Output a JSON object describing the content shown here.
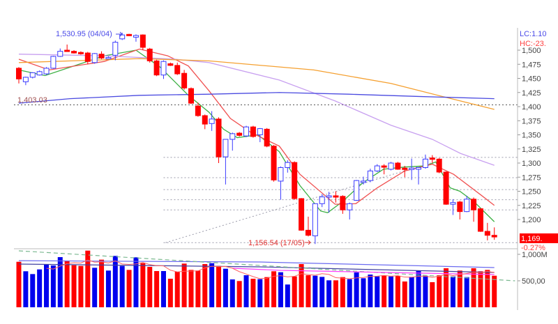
{
  "chart_data": {
    "type": "candlestick",
    "price_axis": {
      "ticks": [
        1500,
        1475,
        1450,
        1425,
        1400,
        1375,
        1350,
        1325,
        1300,
        1275,
        1250,
        1225,
        1200
      ],
      "ylim": [
        1150,
        1535
      ]
    },
    "volume_axis": {
      "tick_labels": [
        "1,000M",
        "500,00"
      ],
      "tick_values": [
        1000,
        500
      ],
      "ylim": [
        0,
        1130
      ],
      "unit": "M"
    },
    "header_labels": {
      "lc": "LC:1.10",
      "hc": "HC:-23."
    },
    "last_price": {
      "label": "1,169.",
      "change": "-0.27%",
      "value": 1169
    },
    "annotations": {
      "high": {
        "label": "1,530.95 (04/04)",
        "value": 1530.95,
        "index": 15
      },
      "low": {
        "label": "1,156.54 (17/05)",
        "value": 1156.54,
        "index": 43
      },
      "reference": {
        "label": "1,403.03",
        "value": 1403.03
      }
    },
    "levels": [
      1310,
      1274,
      1253,
      1235,
      1217,
      1159
    ],
    "trendline": [
      [
        21.3,
        1159
      ],
      [
        60,
        1301
      ]
    ],
    "candles": [
      [
        1468,
        1470,
        1441,
        1449
      ],
      [
        1444,
        1453,
        1438,
        1452
      ],
      [
        1452,
        1461,
        1450,
        1460
      ],
      [
        1456,
        1464,
        1455,
        1462
      ],
      [
        1458,
        1470,
        1456,
        1468
      ],
      [
        1468,
        1490,
        1467,
        1489
      ],
      [
        1489,
        1503,
        1488,
        1498
      ],
      [
        1500,
        1510,
        1497,
        1498
      ],
      [
        1498,
        1500,
        1494,
        1495
      ],
      [
        1496,
        1498,
        1492,
        1494
      ],
      [
        1495,
        1497,
        1475,
        1480
      ],
      [
        1478,
        1495,
        1476,
        1494
      ],
      [
        1493,
        1498,
        1484,
        1486
      ],
      [
        1485,
        1489,
        1484,
        1487
      ],
      [
        1491,
        1517,
        1482,
        1514
      ],
      [
        1520,
        1530.95,
        1518,
        1527
      ],
      [
        1528,
        1529,
        1525,
        1526
      ],
      [
        1523,
        1528,
        1515,
        1526
      ],
      [
        1527,
        1528,
        1500,
        1505
      ],
      [
        1502,
        1504,
        1478,
        1481
      ],
      [
        1481,
        1483,
        1454,
        1456
      ],
      [
        1456,
        1482,
        1449,
        1480
      ],
      [
        1476,
        1478,
        1472,
        1473
      ],
      [
        1473,
        1478,
        1456,
        1458
      ],
      [
        1459,
        1465,
        1430,
        1433
      ],
      [
        1432,
        1434,
        1405,
        1406
      ],
      [
        1401,
        1407,
        1382,
        1384
      ],
      [
        1384,
        1386,
        1360,
        1369
      ],
      [
        1370,
        1392,
        1357,
        1378
      ],
      [
        1378,
        1381,
        1300,
        1311
      ],
      [
        1311,
        1342,
        1262,
        1342
      ],
      [
        1342,
        1354,
        1322,
        1352
      ],
      [
        1353,
        1355,
        1347,
        1349
      ],
      [
        1348,
        1366,
        1346,
        1364
      ],
      [
        1364,
        1366,
        1345,
        1347
      ],
      [
        1350,
        1362,
        1337,
        1361
      ],
      [
        1360,
        1362,
        1328,
        1330
      ],
      [
        1330,
        1332,
        1267,
        1270
      ],
      [
        1268,
        1294,
        1235,
        1292
      ],
      [
        1292,
        1305,
        1283,
        1301
      ],
      [
        1301,
        1303,
        1235,
        1237
      ],
      [
        1237,
        1238,
        1180,
        1181
      ],
      [
        1181,
        1205,
        1170,
        1172
      ],
      [
        1171,
        1228,
        1156.54,
        1228
      ],
      [
        1228,
        1245,
        1222,
        1240
      ],
      [
        1241,
        1249,
        1212,
        1242
      ],
      [
        1242,
        1250,
        1230,
        1240
      ],
      [
        1241,
        1243,
        1210,
        1217
      ],
      [
        1217,
        1230,
        1200,
        1228
      ],
      [
        1234,
        1270,
        1233,
        1269
      ],
      [
        1266,
        1276,
        1262,
        1268
      ],
      [
        1269,
        1290,
        1266,
        1286
      ],
      [
        1286,
        1298,
        1284,
        1295
      ],
      [
        1295,
        1298,
        1280,
        1294
      ],
      [
        1289,
        1302,
        1287,
        1300
      ],
      [
        1300,
        1302,
        1288,
        1289
      ],
      [
        1291,
        1295,
        1275,
        1289
      ],
      [
        1289,
        1308,
        1270,
        1291
      ],
      [
        1289,
        1293,
        1262,
        1292
      ],
      [
        1292,
        1315,
        1290,
        1307
      ],
      [
        1309,
        1314,
        1300,
        1307
      ],
      [
        1307,
        1309,
        1282,
        1284
      ],
      [
        1284,
        1285,
        1226,
        1227
      ],
      [
        1227,
        1236,
        1208,
        1230
      ],
      [
        1231,
        1233,
        1200,
        1214
      ],
      [
        1214,
        1242,
        1213,
        1236
      ],
      [
        1236,
        1239,
        1196,
        1217
      ],
      [
        1219,
        1220,
        1178,
        1179
      ],
      [
        1179,
        1194,
        1163,
        1172
      ],
      [
        1172,
        1186,
        1164,
        1169
      ]
    ],
    "price_lines": [
      {
        "color": "#3cb043",
        "points": [
          [
            0,
            1465
          ],
          [
            3.8,
            1455
          ],
          [
            12.4,
            1490
          ],
          [
            17,
            1500
          ],
          [
            20.5,
            1470
          ],
          [
            24.6,
            1420
          ],
          [
            27.6,
            1390
          ],
          [
            29.7,
            1360
          ],
          [
            31.7,
            1345
          ],
          [
            34.7,
            1350
          ],
          [
            37.8,
            1320
          ],
          [
            40.8,
            1260
          ],
          [
            43.8,
            1215
          ],
          [
            44.8,
            1212
          ],
          [
            46.9,
            1231
          ],
          [
            49.9,
            1265
          ],
          [
            52.9,
            1289
          ],
          [
            56,
            1293
          ],
          [
            59,
            1295
          ],
          [
            60.5,
            1302
          ],
          [
            62.6,
            1256
          ],
          [
            64,
            1250
          ],
          [
            66.1,
            1231
          ],
          [
            69,
            1196
          ]
        ]
      },
      {
        "color": "#f05050",
        "points": [
          [
            0,
            1484
          ],
          [
            4.4,
            1465
          ],
          [
            12.4,
            1480
          ],
          [
            17.5,
            1502
          ],
          [
            21.6,
            1490
          ],
          [
            24.6,
            1472
          ],
          [
            27.6,
            1428
          ],
          [
            30.7,
            1379
          ],
          [
            33.7,
            1354
          ],
          [
            37.8,
            1330
          ],
          [
            40.8,
            1280
          ],
          [
            43.8,
            1249
          ],
          [
            45.9,
            1227
          ],
          [
            48.9,
            1228
          ],
          [
            52,
            1256
          ],
          [
            56,
            1286
          ],
          [
            60,
            1298
          ],
          [
            63.1,
            1280
          ],
          [
            67.1,
            1243
          ],
          [
            69,
            1225
          ]
        ]
      },
      {
        "color": "#c8a0f0",
        "points": [
          [
            0,
            1493
          ],
          [
            12.4,
            1490
          ],
          [
            22.6,
            1484
          ],
          [
            27.6,
            1478
          ],
          [
            37.8,
            1447
          ],
          [
            45.9,
            1410
          ],
          [
            54,
            1367
          ],
          [
            60,
            1342
          ],
          [
            64.1,
            1317
          ],
          [
            69,
            1296
          ]
        ]
      },
      {
        "color": "#f5a030",
        "points": [
          [
            0,
            1478
          ],
          [
            17.5,
            1485
          ],
          [
            27.6,
            1481
          ],
          [
            42.8,
            1465
          ],
          [
            54,
            1441
          ],
          [
            62.1,
            1416
          ],
          [
            69,
            1395
          ]
        ]
      },
      {
        "color": "#4a4ae0",
        "points": [
          [
            0,
            1406
          ],
          [
            7.4,
            1414
          ],
          [
            17.5,
            1420
          ],
          [
            27.6,
            1422
          ],
          [
            37.8,
            1425
          ],
          [
            47.9,
            1422
          ],
          [
            58,
            1418
          ],
          [
            69,
            1414
          ]
        ]
      }
    ],
    "volumes": [
      [
        859,
        "down"
      ],
      [
        680,
        "up"
      ],
      [
        627,
        "up"
      ],
      [
        715,
        "up"
      ],
      [
        803,
        "up"
      ],
      [
        789,
        "up"
      ],
      [
        947,
        "up"
      ],
      [
        868,
        "down"
      ],
      [
        794,
        "down"
      ],
      [
        781,
        "down"
      ],
      [
        1070,
        "down"
      ],
      [
        746,
        "up"
      ],
      [
        899,
        "down"
      ],
      [
        693,
        "up"
      ],
      [
        970,
        "up"
      ],
      [
        781,
        "up"
      ],
      [
        706,
        "down"
      ],
      [
        943,
        "up"
      ],
      [
        833,
        "down"
      ],
      [
        763,
        "down"
      ],
      [
        684,
        "down"
      ],
      [
        684,
        "up"
      ],
      [
        539,
        "down"
      ],
      [
        671,
        "down"
      ],
      [
        825,
        "down"
      ],
      [
        706,
        "down"
      ],
      [
        693,
        "down"
      ],
      [
        816,
        "down"
      ],
      [
        833,
        "up"
      ],
      [
        781,
        "down"
      ],
      [
        728,
        "up"
      ],
      [
        526,
        "up"
      ],
      [
        496,
        "down"
      ],
      [
        605,
        "up"
      ],
      [
        539,
        "down"
      ],
      [
        531,
        "up"
      ],
      [
        570,
        "down"
      ],
      [
        680,
        "down"
      ],
      [
        662,
        "up"
      ],
      [
        430,
        "up"
      ],
      [
        583,
        "down"
      ],
      [
        816,
        "down"
      ],
      [
        605,
        "down"
      ],
      [
        596,
        "up"
      ],
      [
        574,
        "up"
      ],
      [
        509,
        "up"
      ],
      [
        509,
        "down"
      ],
      [
        570,
        "down"
      ],
      [
        531,
        "up"
      ],
      [
        658,
        "up"
      ],
      [
        548,
        "up"
      ],
      [
        618,
        "up"
      ],
      [
        583,
        "up"
      ],
      [
        605,
        "down"
      ],
      [
        583,
        "up"
      ],
      [
        592,
        "down"
      ],
      [
        487,
        "down"
      ],
      [
        574,
        "up"
      ],
      [
        693,
        "up"
      ],
      [
        596,
        "up"
      ],
      [
        474,
        "down"
      ],
      [
        605,
        "down"
      ],
      [
        737,
        "down"
      ],
      [
        583,
        "up"
      ],
      [
        693,
        "down"
      ],
      [
        570,
        "up"
      ],
      [
        737,
        "down"
      ],
      [
        680,
        "down"
      ],
      [
        706,
        "down"
      ],
      [
        596,
        "down"
      ]
    ],
    "volume_lines": [
      {
        "color": "#6a6af0",
        "dash": false,
        "points": [
          [
            0,
            880
          ],
          [
            35,
            855
          ],
          [
            69,
            750
          ]
        ]
      },
      {
        "color": "#4040a0",
        "dash": false,
        "points": [
          [
            0,
            816
          ],
          [
            35,
            763
          ],
          [
            69,
            658
          ]
        ]
      },
      {
        "color": "#7ab890",
        "dash": true,
        "points": [
          [
            0,
            1066
          ],
          [
            35,
            790
          ],
          [
            72,
            500
          ]
        ]
      },
      {
        "color": "#ff40ff",
        "dash": false,
        "points": [
          [
            31,
            737
          ],
          [
            38,
            697
          ],
          [
            69,
            618
          ]
        ]
      }
    ],
    "colors": {
      "up": "#3a3aff",
      "down": "#ff0000",
      "grid": "#9a9aaa",
      "axis": "#bbbbbb"
    }
  }
}
